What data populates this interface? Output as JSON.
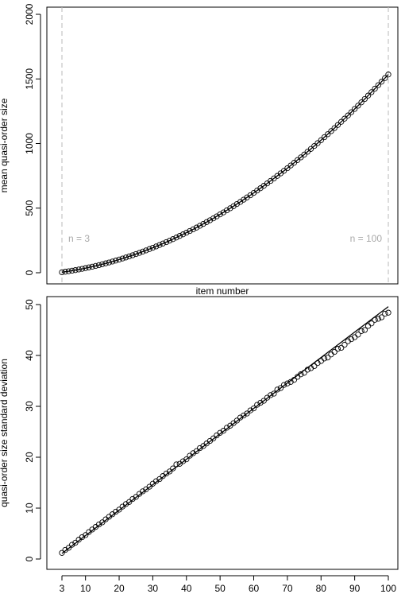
{
  "chart_data": [
    {
      "type": "scatter",
      "title": "",
      "xlabel": "item number",
      "ylabel": "mean quasi-order size",
      "xlim": [
        3,
        100
      ],
      "ylim": [
        0,
        2000
      ],
      "yticks": [
        0,
        500,
        1000,
        1500,
        2000
      ],
      "xticks": [],
      "fit_line": true,
      "reference_lines": [
        {
          "x": 3,
          "label": "n = 3"
        },
        {
          "x": 100,
          "label": "n = 100"
        }
      ],
      "x": [
        3,
        4,
        5,
        6,
        7,
        8,
        9,
        10,
        11,
        12,
        13,
        14,
        15,
        16,
        17,
        18,
        19,
        20,
        21,
        22,
        23,
        24,
        25,
        26,
        27,
        28,
        29,
        30,
        31,
        32,
        33,
        34,
        35,
        36,
        37,
        38,
        39,
        40,
        41,
        42,
        43,
        44,
        45,
        46,
        47,
        48,
        49,
        50,
        51,
        52,
        53,
        54,
        55,
        56,
        57,
        58,
        59,
        60,
        61,
        62,
        63,
        64,
        65,
        66,
        67,
        68,
        69,
        70,
        71,
        72,
        73,
        74,
        75,
        76,
        77,
        78,
        79,
        80,
        81,
        82,
        83,
        84,
        85,
        86,
        87,
        88,
        89,
        90,
        91,
        92,
        93,
        94,
        95,
        96,
        97,
        98,
        99,
        100
      ],
      "y": [
        4,
        7.9,
        11.8,
        16,
        20.5,
        25.2,
        30.2,
        35.5,
        41,
        46.8,
        52.8,
        59.1,
        65.6,
        72.4,
        79.4,
        86.7,
        94.2,
        102,
        110,
        118.3,
        126.8,
        135.6,
        144.6,
        153.9,
        163.4,
        173.2,
        183.2,
        193.5,
        204,
        214.8,
        225.8,
        237.1,
        248.6,
        260.4,
        272.4,
        284.7,
        297.2,
        310,
        323,
        336.3,
        349.8,
        363.6,
        377.6,
        391.9,
        406.4,
        421.2,
        436.2,
        451.5,
        467,
        482.8,
        498.8,
        515.1,
        531.6,
        548.4,
        565.4,
        582.7,
        600.2,
        618,
        636,
        654.3,
        672.8,
        691.6,
        710.6,
        729.9,
        749.4,
        769.2,
        789.2,
        809.5,
        830,
        850.8,
        871.8,
        893.1,
        914.6,
        936.4,
        958.4,
        980.7,
        1003.2,
        1026,
        1049,
        1072.3,
        1095.8,
        1119.6,
        1143.6,
        1167.9,
        1192.4,
        1217.2,
        1242.2,
        1267.5,
        1293,
        1318.8,
        1344.8,
        1371.1,
        1397.6,
        1424.4,
        1451.4,
        1478.7,
        1506.2,
        1534
      ]
    },
    {
      "type": "scatter",
      "title": "",
      "xlabel": "",
      "ylabel": "quasi-order size standard deviation",
      "xlim": [
        3,
        100
      ],
      "ylim": [
        0,
        50
      ],
      "yticks": [
        0,
        10,
        20,
        30,
        40,
        50
      ],
      "xticks": [
        3,
        10,
        20,
        30,
        40,
        50,
        60,
        70,
        80,
        90,
        100
      ],
      "fit_line": true,
      "fit": {
        "x0": 3,
        "y0": 1.1,
        "x1": 100,
        "y1": 49.6
      },
      "x": [
        3,
        4,
        5,
        6,
        7,
        8,
        9,
        10,
        11,
        12,
        13,
        14,
        15,
        16,
        17,
        18,
        19,
        20,
        21,
        22,
        23,
        24,
        25,
        26,
        27,
        28,
        29,
        30,
        31,
        32,
        33,
        34,
        35,
        36,
        37,
        38,
        39,
        40,
        41,
        42,
        43,
        44,
        45,
        46,
        47,
        48,
        49,
        50,
        51,
        52,
        53,
        54,
        55,
        56,
        57,
        58,
        59,
        60,
        61,
        62,
        63,
        64,
        65,
        66,
        67,
        68,
        69,
        70,
        71,
        72,
        73,
        74,
        75,
        76,
        77,
        78,
        79,
        80,
        81,
        82,
        83,
        84,
        85,
        86,
        87,
        88,
        89,
        90,
        91,
        92,
        93,
        94,
        95,
        96,
        97,
        98,
        99,
        100
      ],
      "y": [
        1.2,
        1.8,
        2.2,
        2.8,
        3.2,
        3.8,
        4.3,
        4.7,
        5.3,
        5.8,
        6.3,
        6.8,
        7.2,
        7.8,
        8.3,
        8.8,
        9.3,
        9.7,
        10.3,
        10.8,
        11.2,
        11.8,
        12.2,
        12.8,
        13.3,
        13.7,
        14.2,
        14.8,
        15.3,
        15.7,
        16.3,
        16.8,
        17.2,
        17.8,
        18.6,
        18.7,
        19.2,
        19.6,
        20.3,
        20.8,
        21.2,
        21.8,
        22.2,
        22.7,
        23.2,
        23.7,
        24.3,
        24.8,
        25.2,
        25.8,
        26.2,
        26.7,
        27.2,
        27.8,
        28.2,
        28.6,
        29.2,
        29.6,
        30.3,
        30.7,
        31.1,
        31.7,
        32.2,
        32.5,
        33.3,
        33.6,
        34.2,
        34.5,
        34.8,
        35.2,
        35.8,
        36.3,
        36.6,
        37.2,
        37.5,
        37.9,
        38.5,
        38.9,
        39.4,
        39.6,
        40.2,
        40.7,
        41.3,
        41.5,
        42.1,
        42.8,
        43.2,
        43.6,
        44.1,
        44.8,
        45.0,
        45.8,
        46.3,
        47.0,
        47.2,
        47.5,
        48.2,
        48.4
      ]
    }
  ]
}
